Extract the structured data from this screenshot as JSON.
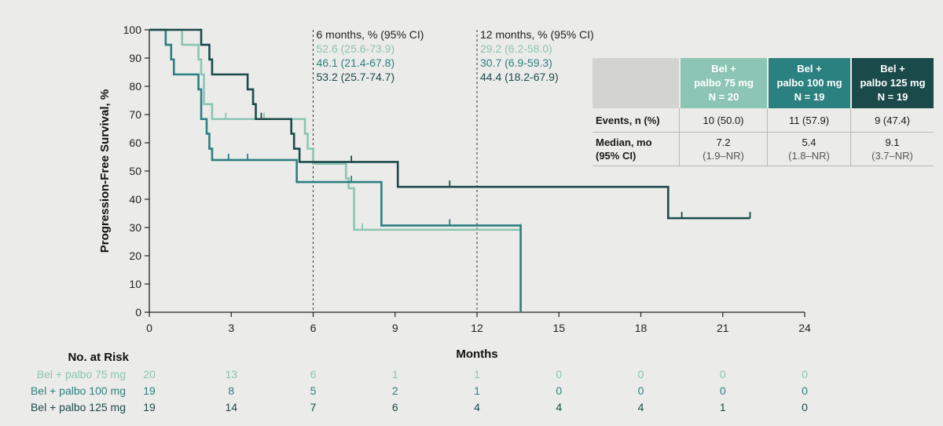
{
  "colors": {
    "bel75": "#8cc5b3",
    "bel100": "#2b8080",
    "bel125": "#1b4a4a",
    "annot": "#222222"
  },
  "chart_data": {
    "type": "line",
    "xlabel": "Months",
    "ylabel": "Progression-Free Survival, %",
    "xlim": [
      0,
      24
    ],
    "ylim": [
      0,
      100
    ],
    "x_ticks": [
      "0",
      "3",
      "6",
      "9",
      "12",
      "15",
      "18",
      "21",
      "24"
    ],
    "y_ticks": [
      "0",
      "10",
      "20",
      "30",
      "40",
      "50",
      "60",
      "70",
      "80",
      "90",
      "100"
    ],
    "grid": false,
    "series": [
      {
        "name": "Bel + palbo 75 mg",
        "color_key": "bel75",
        "steps": [
          [
            0,
            100
          ],
          [
            1.2,
            94.7
          ],
          [
            1.8,
            89.5
          ],
          [
            1.9,
            84.2
          ],
          [
            2.0,
            73.7
          ],
          [
            2.3,
            68.4
          ],
          [
            5.7,
            63.2
          ],
          [
            5.8,
            57.9
          ],
          [
            6.0,
            52.6
          ],
          [
            7.2,
            47.4
          ],
          [
            7.3,
            43.9
          ],
          [
            7.5,
            29.2
          ],
          [
            13.6,
            0
          ]
        ],
        "censors": [
          [
            2.8,
            68.4
          ],
          [
            4.2,
            68.4
          ],
          [
            7.8,
            29.2
          ],
          [
            13.6,
            29.2
          ]
        ]
      },
      {
        "name": "Bel + palbo 100 mg",
        "color_key": "bel100",
        "steps": [
          [
            0,
            100
          ],
          [
            0.6,
            94.7
          ],
          [
            0.8,
            89.5
          ],
          [
            0.9,
            84.2
          ],
          [
            1.8,
            78.9
          ],
          [
            1.9,
            68.4
          ],
          [
            2.1,
            63.2
          ],
          [
            2.2,
            57.9
          ],
          [
            2.3,
            53.9
          ],
          [
            5.4,
            46.1
          ],
          [
            8.5,
            30.7
          ],
          [
            13.6,
            0
          ]
        ],
        "censors": [
          [
            2.9,
            53.9
          ],
          [
            3.6,
            53.9
          ],
          [
            7.4,
            46.1
          ],
          [
            11.0,
            30.7
          ]
        ]
      },
      {
        "name": "Bel + palbo 125 mg",
        "color_key": "bel125",
        "steps": [
          [
            0,
            100
          ],
          [
            1.9,
            94.7
          ],
          [
            2.2,
            89.5
          ],
          [
            2.3,
            84.2
          ],
          [
            3.6,
            78.9
          ],
          [
            3.8,
            73.7
          ],
          [
            3.9,
            68.4
          ],
          [
            5.2,
            63.2
          ],
          [
            5.3,
            57.9
          ],
          [
            5.5,
            53.2
          ],
          [
            9.1,
            44.4
          ],
          [
            19.0,
            33.3
          ],
          [
            22.0,
            33.3
          ]
        ],
        "censors": [
          [
            4.1,
            68.4
          ],
          [
            7.4,
            53.2
          ],
          [
            11.0,
            44.4
          ],
          [
            19.5,
            33.3
          ],
          [
            22.0,
            33.3
          ]
        ]
      }
    ],
    "reference_lines": [
      6,
      12
    ],
    "annotations": {
      "m6_header": "6 months, % (95% CI)",
      "m6_values": [
        "52.6 (25.6-73.9)",
        "46.1 (21.4-67.8)",
        "53.2 (25.7-74.7)"
      ],
      "m12_header": "12 months, % (95% CI)",
      "m12_values": [
        "29.2 (6.2-58.0)",
        "30.7 (6.9-59.3)",
        "44.4 (18.2-67.9)"
      ]
    }
  },
  "table": {
    "headers": [
      [
        "Bel +",
        "palbo 75 mg",
        "N = 20"
      ],
      [
        "Bel +",
        "palbo 100 mg",
        "N = 19"
      ],
      [
        "Bel +",
        "palbo 125 mg",
        "N = 19"
      ]
    ],
    "events_label": "Events, n (%)",
    "events": [
      "10 (50.0)",
      "11 (57.9)",
      "9 (47.4)"
    ],
    "median_label_1": "Median, mo",
    "median_label_2": "(95% CI)",
    "median": [
      "7.2",
      "5.4",
      "9.1"
    ],
    "median_ci": [
      "(1.9–NR)",
      "(1.8–NR)",
      "(3.7–NR)"
    ]
  },
  "risk": {
    "title": "No. at Risk",
    "rows": [
      {
        "label": "Bel + palbo 75 mg",
        "color_key": "bel75",
        "values": [
          "20",
          "13",
          "6",
          "1",
          "1",
          "0",
          "0",
          "0",
          "0"
        ]
      },
      {
        "label": "Bel + palbo 100 mg",
        "color_key": "bel100",
        "values": [
          "19",
          "8",
          "5",
          "2",
          "1",
          "0",
          "0",
          "0",
          "0"
        ]
      },
      {
        "label": "Bel + palbo 125 mg",
        "color_key": "bel125",
        "values": [
          "19",
          "14",
          "7",
          "6",
          "4",
          "4",
          "4",
          "1",
          "0"
        ]
      }
    ]
  }
}
